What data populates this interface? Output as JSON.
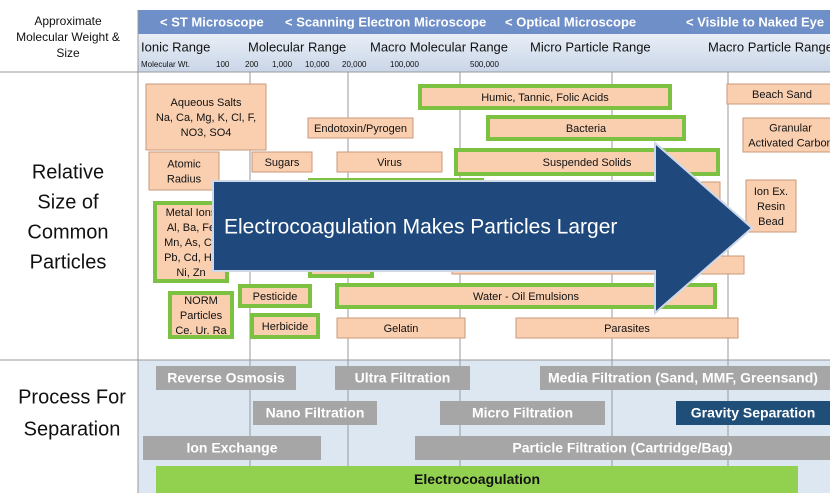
{
  "header": {
    "left_label": [
      "Approximate",
      "Molecular Weight &",
      "Size"
    ],
    "microscopes": [
      "< ST Microscope",
      "< Scanning Electron Microscope",
      "< Optical Microscope",
      "< Visible to Naked Eye"
    ],
    "ranges": [
      "Ionic Range",
      "Molecular Range",
      "Macro Molecular Range",
      "Micro Particle Range",
      "Macro Particle Range"
    ],
    "weights": [
      "Molecular Wt.",
      "100",
      "200",
      "1,000",
      "10,000",
      "20,000",
      "100,000",
      "500,000"
    ]
  },
  "particles": {
    "label": [
      "Relative",
      "Size of",
      "Common",
      "Particles"
    ],
    "items": [
      {
        "lines": [
          "Aqueous Salts",
          "Na, Ca, Mg, K, Cl, F,",
          "NO3, SO4"
        ]
      },
      {
        "lines": [
          "Humic, Tannic, Folic Acids"
        ]
      },
      {
        "lines": [
          "Beach Sand"
        ]
      },
      {
        "lines": [
          "Endotoxin/Pyrogen"
        ]
      },
      {
        "lines": [
          "Bacteria"
        ]
      },
      {
        "lines": [
          "Granular",
          "Activated Carbon"
        ]
      },
      {
        "lines": [
          "Atomic",
          "Radius"
        ]
      },
      {
        "lines": [
          "Sugars"
        ]
      },
      {
        "lines": [
          "Virus"
        ]
      },
      {
        "lines": [
          "Suspended Solids"
        ]
      },
      {
        "lines": [
          "Ion Ex.",
          "Resin",
          "Bead"
        ]
      },
      {
        "lines": [
          "Metal Ions",
          "Al, Ba, Fe",
          "Mn, As, Cu",
          "Pb, Cd, Hg",
          "Ni, Zn"
        ]
      },
      {
        "lines": [
          "NORM",
          "Particles",
          "Ce. Ur. Ra"
        ]
      },
      {
        "lines": [
          "Pesticide"
        ]
      },
      {
        "lines": [
          "Water - Oil Emulsions"
        ]
      },
      {
        "lines": [
          "Herbicide"
        ]
      },
      {
        "lines": [
          "Gelatin"
        ]
      },
      {
        "lines": [
          "Parasites"
        ]
      }
    ]
  },
  "arrow": {
    "label": "Electrocoagulation Makes Particles Larger"
  },
  "process": {
    "label": [
      "Process For",
      "Separation"
    ],
    "items": [
      "Reverse Osmosis",
      "Ultra Filtration",
      "Media Filtration (Sand, MMF, Greensand)",
      "Nano Filtration",
      "Micro Filtration",
      "Gravity Separation",
      "Ion Exchange",
      "Particle Filtration (Cartridge/Bag)",
      "Electrocoagulation"
    ]
  }
}
